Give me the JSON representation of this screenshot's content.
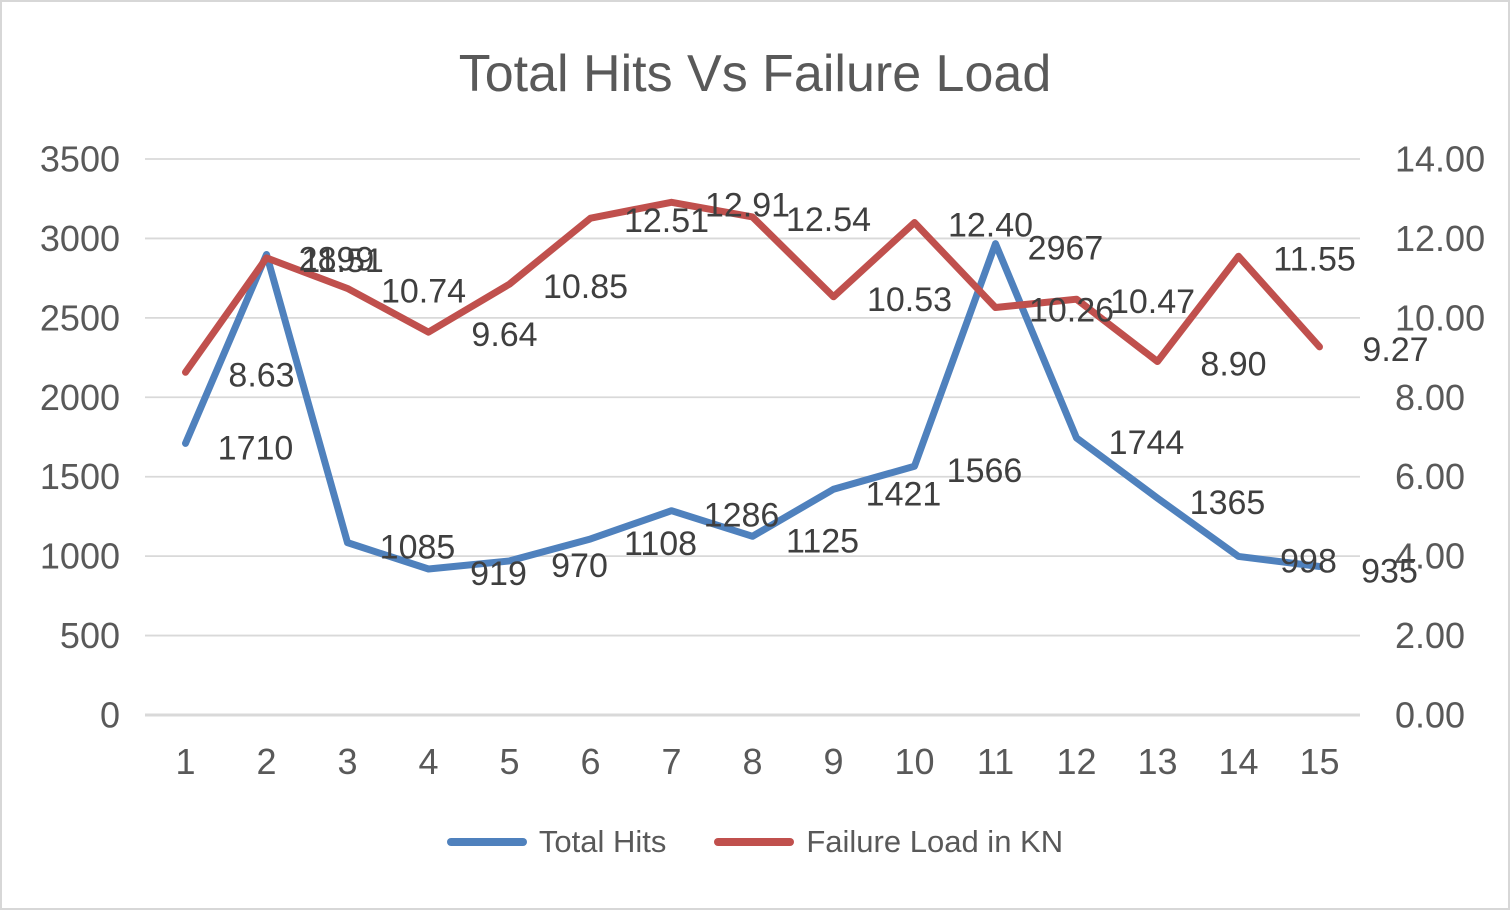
{
  "chart_data": {
    "type": "line",
    "title": "Total Hits Vs Failure Load",
    "categories": [
      "1",
      "2",
      "3",
      "4",
      "5",
      "6",
      "7",
      "8",
      "9",
      "10",
      "11",
      "12",
      "13",
      "14",
      "15"
    ],
    "series": [
      {
        "name": "Total Hits",
        "axis": "left",
        "color": "#4F81BD",
        "values": [
          1710,
          2899,
          1085,
          919,
          970,
          1108,
          1286,
          1125,
          1421,
          1566,
          2967,
          1744,
          1365,
          998,
          935
        ],
        "labels": [
          "1710",
          "2899",
          "1085",
          "919",
          "970",
          "1108",
          "1286",
          "1125",
          "1421",
          "1566",
          "2967",
          "1744",
          "1365",
          "998",
          "935"
        ]
      },
      {
        "name": "Failure Load in KN",
        "axis": "right",
        "color": "#C0504D",
        "values": [
          8.63,
          11.51,
          10.74,
          9.64,
          10.85,
          12.51,
          12.91,
          12.54,
          10.53,
          12.4,
          10.26,
          10.47,
          8.9,
          11.55,
          9.27
        ],
        "labels": [
          "8.63",
          "11.51",
          "10.74",
          "9.64",
          "10.85",
          "12.51",
          "12.91",
          "12.54",
          "10.53",
          "12.40",
          "10.26",
          "10.47",
          "8.90",
          "11.55",
          "9.27"
        ]
      }
    ],
    "left_axis": {
      "min": 0,
      "max": 3500,
      "step": 500,
      "ticks": [
        "3500",
        "3000",
        "2500",
        "2000",
        "1500",
        "1000",
        "500",
        "0"
      ]
    },
    "right_axis": {
      "min": 0,
      "max": 14,
      "step": 2,
      "ticks": [
        "14.00",
        "12.00",
        "10.00",
        "8.00",
        "6.00",
        "4.00",
        "2.00",
        "0.00"
      ]
    },
    "grid": true,
    "legend": {
      "position": "bottom",
      "items": [
        {
          "label": "Total Hits",
          "color": "#4F81BD"
        },
        {
          "label": "Failure Load in KN",
          "color": "#C0504D"
        }
      ]
    },
    "colors": {
      "gridline": "#D9D9D9",
      "axis_text": "#595959",
      "data_label": "#3F3F3F",
      "title": "#595959",
      "background": "#FFFFFF",
      "border": "#D7D7D7"
    }
  }
}
